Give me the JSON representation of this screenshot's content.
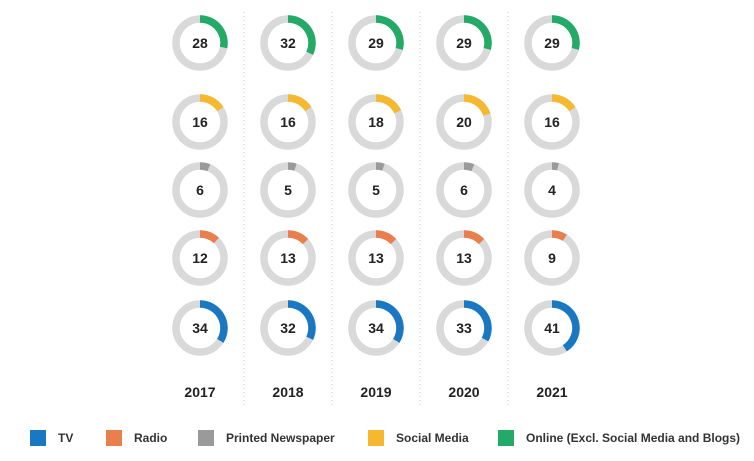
{
  "chart_data": {
    "type": "donut-grid",
    "years": [
      "2017",
      "2018",
      "2019",
      "2020",
      "2021"
    ],
    "series": [
      {
        "name": "Online (Excl. Social Media and Blogs)",
        "color": "#22aa66",
        "values": [
          28,
          32,
          29,
          29,
          29
        ]
      },
      {
        "name": "Social Media",
        "color": "#f5b82e",
        "values": [
          16,
          16,
          18,
          20,
          16
        ]
      },
      {
        "name": "Printed Newspaper",
        "color": "#9a9a9a",
        "values": [
          6,
          5,
          5,
          6,
          4
        ]
      },
      {
        "name": "Radio",
        "color": "#ea7f4e",
        "values": [
          12,
          13,
          13,
          13,
          9
        ]
      },
      {
        "name": "TV",
        "color": "#1a78c2",
        "values": [
          34,
          32,
          34,
          33,
          41
        ]
      }
    ],
    "unit": "percent",
    "track_color": "#d9d9d9",
    "legend": [
      {
        "label": "TV",
        "color": "#1a78c2"
      },
      {
        "label": "Radio",
        "color": "#ea7f4e"
      },
      {
        "label": "Printed Newspaper",
        "color": "#9a9a9a"
      },
      {
        "label": "Social Media",
        "color": "#f5b82e"
      },
      {
        "label": "Online (Excl. Social Media and Blogs)",
        "color": "#22aa66"
      }
    ],
    "legend_placement": "bottom"
  }
}
